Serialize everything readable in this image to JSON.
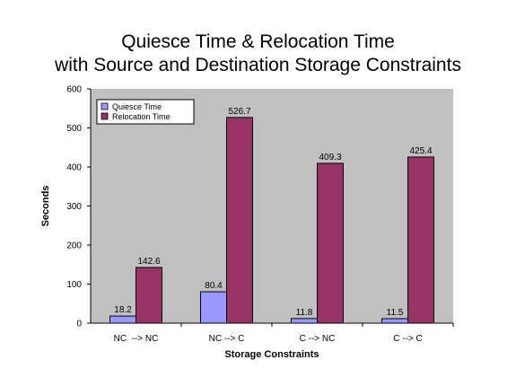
{
  "chart_data": {
    "type": "bar",
    "title_line1": "Quiesce Time & Relocation Time",
    "title_line2": "with Source and Destination Storage Constraints",
    "xlabel": "Storage Constraints",
    "ylabel": "Seconds",
    "ylim": [
      0,
      600
    ],
    "yticks": [
      0,
      100,
      200,
      300,
      400,
      500,
      600
    ],
    "categories": [
      "NC  --> NC",
      "NC --> C",
      "C --> NC",
      "C --> C"
    ],
    "series": [
      {
        "name": "Quiesce Time",
        "color": "#9999ff",
        "values": [
          18.2,
          80.4,
          11.8,
          11.5
        ],
        "labels": [
          "18.2",
          "80.4",
          "11.8",
          "11.5"
        ]
      },
      {
        "name": "Relocation Time",
        "color": "#993366",
        "values": [
          142.6,
          526.7,
          409.3,
          425.4
        ],
        "labels": [
          "142.6",
          "526.7",
          "409.3",
          "425.4"
        ]
      }
    ],
    "plot_background": "#c0c0c0",
    "grid": false,
    "legend_position": "top-left"
  }
}
